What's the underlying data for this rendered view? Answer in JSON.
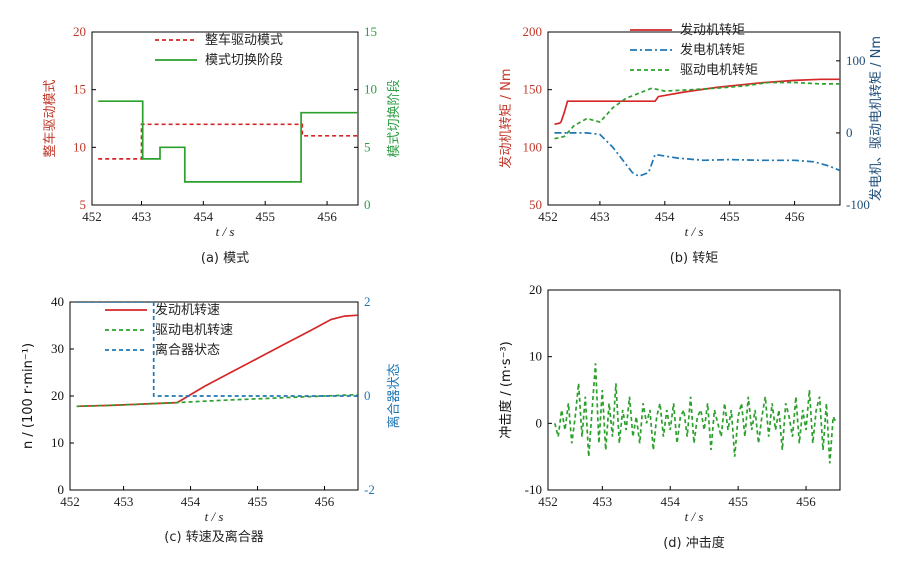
{
  "chart_data": [
    {
      "id": "a",
      "type": "line",
      "caption": "(a) 模式",
      "xlabel": "t / s",
      "ylabel": "整车驱动模式",
      "ylabel_right": "模式切换阶段",
      "xlim": [
        452.2,
        456.5
      ],
      "xticks": [
        452,
        453,
        454,
        455,
        456
      ],
      "ylim": [
        5,
        20
      ],
      "yticks": [
        5,
        10,
        15,
        20
      ],
      "ylim_right": [
        0,
        15
      ],
      "yticks_right": [
        0,
        5,
        10,
        15
      ],
      "colors": {
        "left": "#c0392b",
        "right": "#2f9e44"
      },
      "legend_position": "top-right",
      "series": [
        {
          "name": "整车驱动模式",
          "axis": "left",
          "color": "#d62728",
          "style": "dashed",
          "x": [
            452.3,
            453.0,
            453.0,
            455.6,
            455.6,
            456.5
          ],
          "y": [
            9,
            9,
            12,
            12,
            11,
            11
          ]
        },
        {
          "name": "模式切换阶段",
          "axis": "right",
          "color": "#2ca02c",
          "style": "solid",
          "x": [
            452.3,
            453.02,
            453.02,
            453.3,
            453.3,
            453.55,
            453.55,
            453.7,
            453.7,
            455.58,
            455.58,
            456.5
          ],
          "y": [
            9,
            9,
            4,
            4,
            5,
            5,
            5,
            5,
            2,
            2,
            8,
            8
          ]
        }
      ]
    },
    {
      "id": "b",
      "type": "line",
      "caption": "(b) 转矩",
      "xlabel": "t / s",
      "ylabel": "发动机转矩 / Nm",
      "ylabel_right": "发电机、驱动电机转矩 / Nm",
      "xlim": [
        452.2,
        456.7
      ],
      "xticks": [
        452,
        453,
        454,
        455,
        456
      ],
      "ylim": [
        50,
        200
      ],
      "yticks": [
        50,
        100,
        150,
        200
      ],
      "ylim_right": [
        -100,
        140
      ],
      "yticks_right": [
        -100,
        0,
        100
      ],
      "colors": {
        "left": "#c0392b",
        "right": "#1f4e79"
      },
      "legend_position": "top-right",
      "series": [
        {
          "name": "发动机转矩",
          "axis": "left",
          "color": "#d62728",
          "style": "solid",
          "x": [
            452.3,
            452.38,
            452.4,
            452.45,
            452.5,
            453.0,
            453.5,
            453.85,
            453.9,
            454.3,
            454.8,
            455.5,
            456.0,
            456.4,
            456.7
          ],
          "y": [
            120,
            121,
            122,
            130,
            140,
            140,
            140,
            140,
            144,
            148,
            152,
            156,
            158,
            159,
            159
          ]
        },
        {
          "name": "发电机转矩",
          "axis": "right",
          "color": "#1f77b4",
          "style": "dashdot",
          "x": [
            452.3,
            452.6,
            452.8,
            453.0,
            453.2,
            453.5,
            453.6,
            453.75,
            453.85,
            454.2,
            454.6,
            455.0,
            455.5,
            456.0,
            456.3,
            456.5,
            456.7
          ],
          "y": [
            0,
            0,
            0,
            -2,
            -20,
            -55,
            -60,
            -55,
            -30,
            -35,
            -38,
            -37,
            -38,
            -38,
            -40,
            -45,
            -52
          ]
        },
        {
          "name": "驱动电机转矩",
          "axis": "right",
          "color": "#2ca02c",
          "style": "dashed",
          "x": [
            452.3,
            452.45,
            452.6,
            452.8,
            453.0,
            453.2,
            453.4,
            453.6,
            453.8,
            454.0,
            454.4,
            454.8,
            455.2,
            455.6,
            456.0,
            456.4,
            456.7
          ],
          "y": [
            -8,
            -5,
            10,
            20,
            15,
            35,
            48,
            55,
            62,
            58,
            60,
            62,
            65,
            70,
            70,
            68,
            68
          ]
        }
      ]
    },
    {
      "id": "c",
      "type": "line",
      "caption": "(c) 转速及离合器",
      "xlabel": "t / s",
      "ylabel": "n / (100 r·min⁻¹)",
      "ylabel_right": "离合器状态",
      "xlim": [
        452.2,
        456.5
      ],
      "xticks": [
        452,
        453,
        454,
        455,
        456
      ],
      "ylim": [
        0,
        40
      ],
      "yticks": [
        0,
        10,
        20,
        30,
        40
      ],
      "ylim_right": [
        -2,
        2
      ],
      "yticks_right": [
        -2,
        0,
        2
      ],
      "colors": {
        "left": "#111111",
        "right": "#1f77b4"
      },
      "legend_position": "top-left",
      "series": [
        {
          "name": "发动机转速",
          "axis": "left",
          "color": "#d62728",
          "style": "solid",
          "x": [
            452.3,
            452.8,
            453.3,
            453.8,
            454.2,
            454.6,
            455.0,
            455.4,
            455.8,
            456.1,
            456.3,
            456.5
          ],
          "y": [
            17.8,
            18.0,
            18.3,
            18.6,
            22.0,
            25.0,
            28.0,
            31.0,
            34.0,
            36.3,
            37.0,
            37.2
          ]
        },
        {
          "name": "驱动电机转速",
          "axis": "left",
          "color": "#2ca02c",
          "style": "dashed",
          "x": [
            452.3,
            453.0,
            453.8,
            454.5,
            455.0,
            455.5,
            456.0,
            456.5
          ],
          "y": [
            17.8,
            18.1,
            18.6,
            19.1,
            19.4,
            19.7,
            20.0,
            20.3
          ]
        },
        {
          "name": "离合器状态",
          "axis": "right",
          "color": "#1f77b4",
          "style": "dashed",
          "x": [
            452.3,
            453.45,
            453.45,
            456.5
          ],
          "y": [
            2,
            2,
            0,
            0
          ]
        }
      ]
    },
    {
      "id": "d",
      "type": "line",
      "caption": "(d) 冲击度",
      "xlabel": "t / s",
      "ylabel": "冲击度 / (m·s⁻³)",
      "xlim": [
        452.2,
        456.5
      ],
      "xticks": [
        452,
        453,
        454,
        455,
        456
      ],
      "ylim": [
        -10,
        20
      ],
      "yticks": [
        -10,
        0,
        10,
        20
      ],
      "colors": {
        "left": "#111111"
      },
      "series": [
        {
          "name": "冲击度",
          "axis": "left",
          "color": "#2ca02c",
          "style": "dashed",
          "x": [
            452.3,
            452.35,
            452.4,
            452.45,
            452.5,
            452.55,
            452.6,
            452.65,
            452.7,
            452.75,
            452.8,
            452.85,
            452.9,
            452.95,
            453.0,
            453.05,
            453.1,
            453.15,
            453.2,
            453.25,
            453.3,
            453.35,
            453.4,
            453.45,
            453.5,
            453.55,
            453.6,
            453.65,
            453.7,
            453.75,
            453.8,
            453.85,
            453.9,
            453.95,
            454.0,
            454.05,
            454.1,
            454.15,
            454.2,
            454.25,
            454.3,
            454.35,
            454.4,
            454.45,
            454.5,
            454.55,
            454.6,
            454.65,
            454.7,
            454.75,
            454.8,
            454.85,
            454.9,
            454.95,
            455.0,
            455.05,
            455.1,
            455.15,
            455.2,
            455.25,
            455.3,
            455.35,
            455.4,
            455.45,
            455.5,
            455.55,
            455.6,
            455.65,
            455.7,
            455.75,
            455.8,
            455.85,
            455.9,
            455.95,
            456.0,
            456.05,
            456.1,
            456.15,
            456.2,
            456.25,
            456.3,
            456.35,
            456.4,
            456.45
          ],
          "y": [
            0,
            -2,
            2,
            -1,
            3,
            -3,
            1,
            6,
            -2,
            4,
            -5,
            2,
            9,
            -3,
            5,
            -4,
            3,
            -2,
            6,
            -3,
            2,
            -1,
            4,
            -2,
            1,
            -3,
            3,
            0,
            2,
            -4,
            1,
            3,
            -2,
            2,
            -1,
            3,
            -3,
            1,
            2,
            -2,
            4,
            -3,
            1,
            2,
            -1,
            3,
            -4,
            2,
            0,
            -2,
            3,
            -1,
            2,
            -5,
            1,
            3,
            -2,
            4,
            -1,
            2,
            -3,
            1,
            4,
            -2,
            3,
            -1,
            2,
            -4,
            3,
            1,
            -2,
            4,
            -3,
            2,
            -1,
            5,
            -3,
            2,
            4,
            -4,
            3,
            -6,
            1,
            0
          ]
        }
      ]
    }
  ]
}
